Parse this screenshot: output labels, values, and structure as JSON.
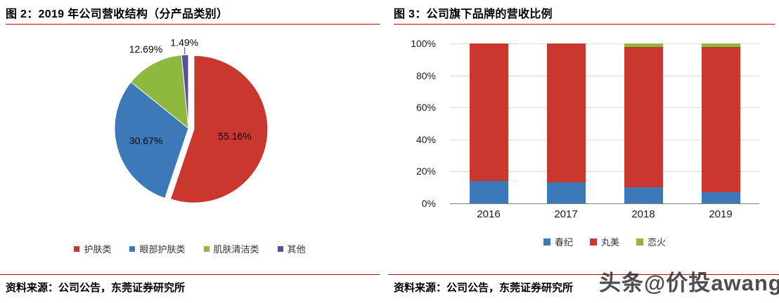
{
  "page": {
    "left": {
      "title": "图 2：2019 年公司营收结构（分产品类别）",
      "source": "资料来源：公司公告，东莞证券研究所"
    },
    "right": {
      "title": "图 3：公司旗下品牌的营收比例",
      "source": "资料来源：公司公告，东莞证券研究所"
    },
    "watermark": "头条@价投awang"
  },
  "colors": {
    "red": "#C9372E",
    "blue": "#3D78B8",
    "green": "#8FB93E",
    "purple": "#5B4EA0",
    "accent_line": "#C00000",
    "grid": "#D9D9D9",
    "axis": "#808080"
  },
  "chart_data": [
    {
      "type": "pie",
      "title": "2019 年公司营收结构（分产品类别）",
      "labels": [
        "护肤类",
        "眼部护肤类",
        "肌肤清洁类",
        "其他"
      ],
      "values": [
        55.16,
        30.67,
        12.69,
        1.49
      ],
      "value_labels": [
        "55.16%",
        "30.67%",
        "12.69%",
        "1.49%"
      ],
      "colors": [
        "#C9372E",
        "#3D78B8",
        "#8FB93E",
        "#5B4EA0"
      ],
      "legend_position": "bottom",
      "start_angle_deg": 0,
      "direction": "clockwise",
      "exploded_slice": "护肤类"
    },
    {
      "type": "bar",
      "subtype": "stacked-100",
      "title": "公司旗下品牌的营收比例",
      "categories": [
        "2016",
        "2017",
        "2018",
        "2019"
      ],
      "series": [
        {
          "name": "春纪",
          "color": "#3D78B8",
          "values": [
            14,
            13,
            10,
            7
          ]
        },
        {
          "name": "丸美",
          "color": "#C9372E",
          "values": [
            86,
            87,
            88,
            91
          ]
        },
        {
          "name": "恋火",
          "color": "#8FB93E",
          "values": [
            0,
            0,
            2,
            2
          ]
        }
      ],
      "y_ticks": [
        "100%",
        "80%",
        "60%",
        "40%",
        "20%",
        "0%"
      ],
      "ylim": [
        0,
        100
      ],
      "grid": true,
      "legend_position": "bottom"
    }
  ]
}
